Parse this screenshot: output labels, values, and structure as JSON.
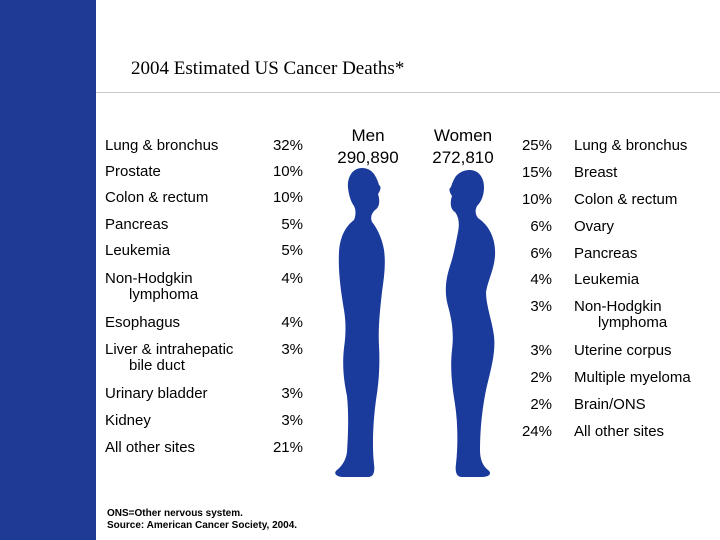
{
  "title": "2004 Estimated US Cancer Deaths*",
  "men": {
    "label": "Men",
    "total": "290,890"
  },
  "women": {
    "label": "Women",
    "total": "272,810"
  },
  "men_rows": [
    {
      "site": "Lung & bronchus",
      "pct": "32%"
    },
    {
      "site": "Prostate",
      "pct": "10%"
    },
    {
      "site": "Colon & rectum",
      "pct": "10%"
    },
    {
      "site": "Pancreas",
      "pct": "5%"
    },
    {
      "site": "Leukemia",
      "pct": "5%"
    },
    {
      "site": "Non-Hodgkin",
      "site2": "lymphoma",
      "pct": "4%"
    },
    {
      "site": "Esophagus",
      "pct": "4%"
    },
    {
      "site": "Liver & intrahepatic",
      "site2": "bile duct",
      "pct": "3%"
    },
    {
      "site": "Urinary bladder",
      "pct": "3%"
    },
    {
      "site": "Kidney",
      "pct": "3%"
    },
    {
      "site": "All other sites",
      "pct": "21%"
    }
  ],
  "women_rows": [
    {
      "pct": "25%",
      "site": "Lung & bronchus"
    },
    {
      "pct": "15%",
      "site": "Breast"
    },
    {
      "pct": "10%",
      "site": "Colon & rectum"
    },
    {
      "pct": "6%",
      "site": "Ovary"
    },
    {
      "pct": "6%",
      "site": "Pancreas"
    },
    {
      "pct": "4%",
      "site": "Leukemia"
    },
    {
      "pct": "3%",
      "site": "Non-Hodgkin",
      "site2": "lymphoma"
    },
    {
      "pct": "3%",
      "site": "Uterine corpus"
    },
    {
      "pct": "2%",
      "site": "Multiple myeloma"
    },
    {
      "pct": "2%",
      "site": "Brain/ONS"
    },
    {
      "pct": "24%",
      "site": "All other sites"
    }
  ],
  "footnote": {
    "line1": "ONS=Other nervous system.",
    "line2": "Source: American Cancer Society, 2004."
  },
  "colors": {
    "bar": "#1f3a93",
    "silhouette": "#1a3a9c"
  }
}
